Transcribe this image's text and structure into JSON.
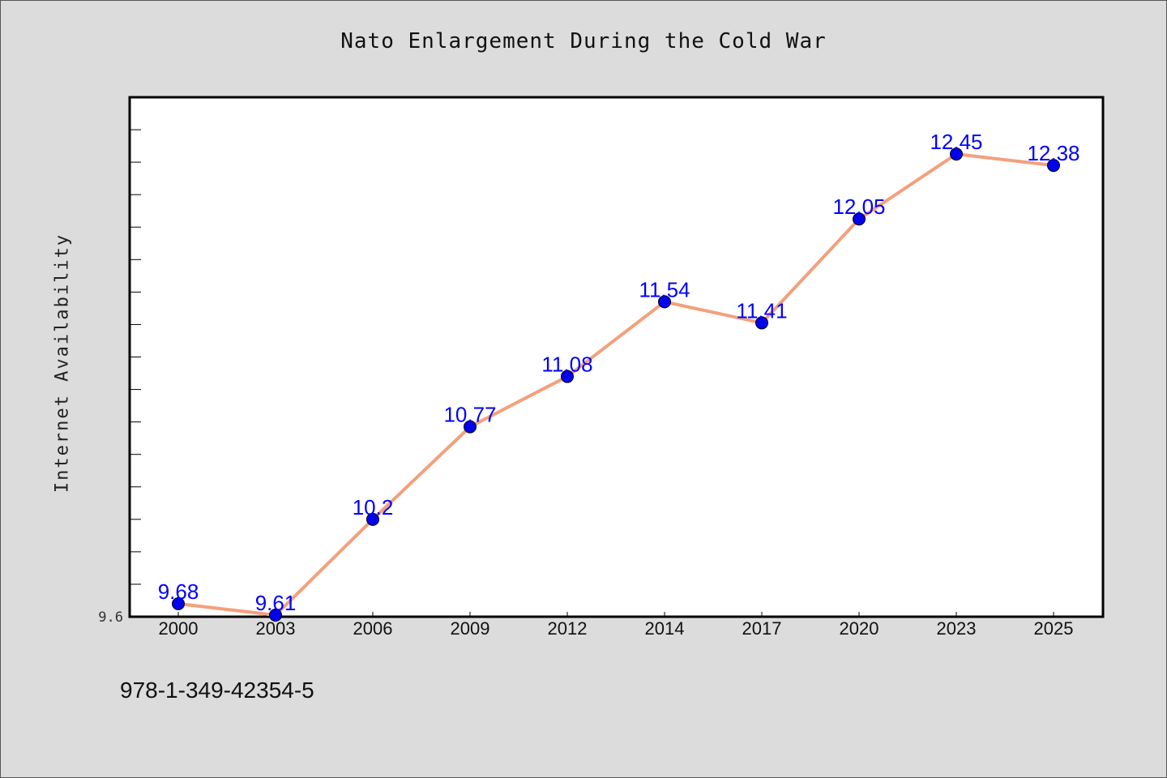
{
  "page": {
    "title": "Nato Enlargement During the Cold War",
    "footer_code": "978-1-349-42354-5"
  },
  "colors": {
    "background": "#dcdcdc",
    "plot_background": "#ffffff",
    "line": "#f4a07c",
    "marker": "#0000ee",
    "data_label": "#0000ff"
  },
  "chart_data": {
    "type": "line",
    "title": "Nato Enlargement During the Cold War",
    "xlabel": "",
    "ylabel": "Internet Availability",
    "categories": [
      "2000",
      "2003",
      "2006",
      "2009",
      "2012",
      "2014",
      "2017",
      "2020",
      "2023",
      "2025"
    ],
    "series": [
      {
        "values": [
          9.68,
          9.61,
          10.2,
          10.77,
          11.08,
          11.54,
          11.41,
          12.05,
          12.45,
          12.38
        ],
        "labels": [
          "9.68",
          "9.61",
          "10.2",
          "10.77",
          "11.08",
          "11.54",
          "11.41",
          "12.05",
          "12.45",
          "12.38"
        ]
      }
    ],
    "ylim": [
      9.6,
      12.8
    ],
    "ymin_label": "9.6",
    "minor_tick_step": 0.2,
    "grid": false,
    "legend": "none"
  }
}
